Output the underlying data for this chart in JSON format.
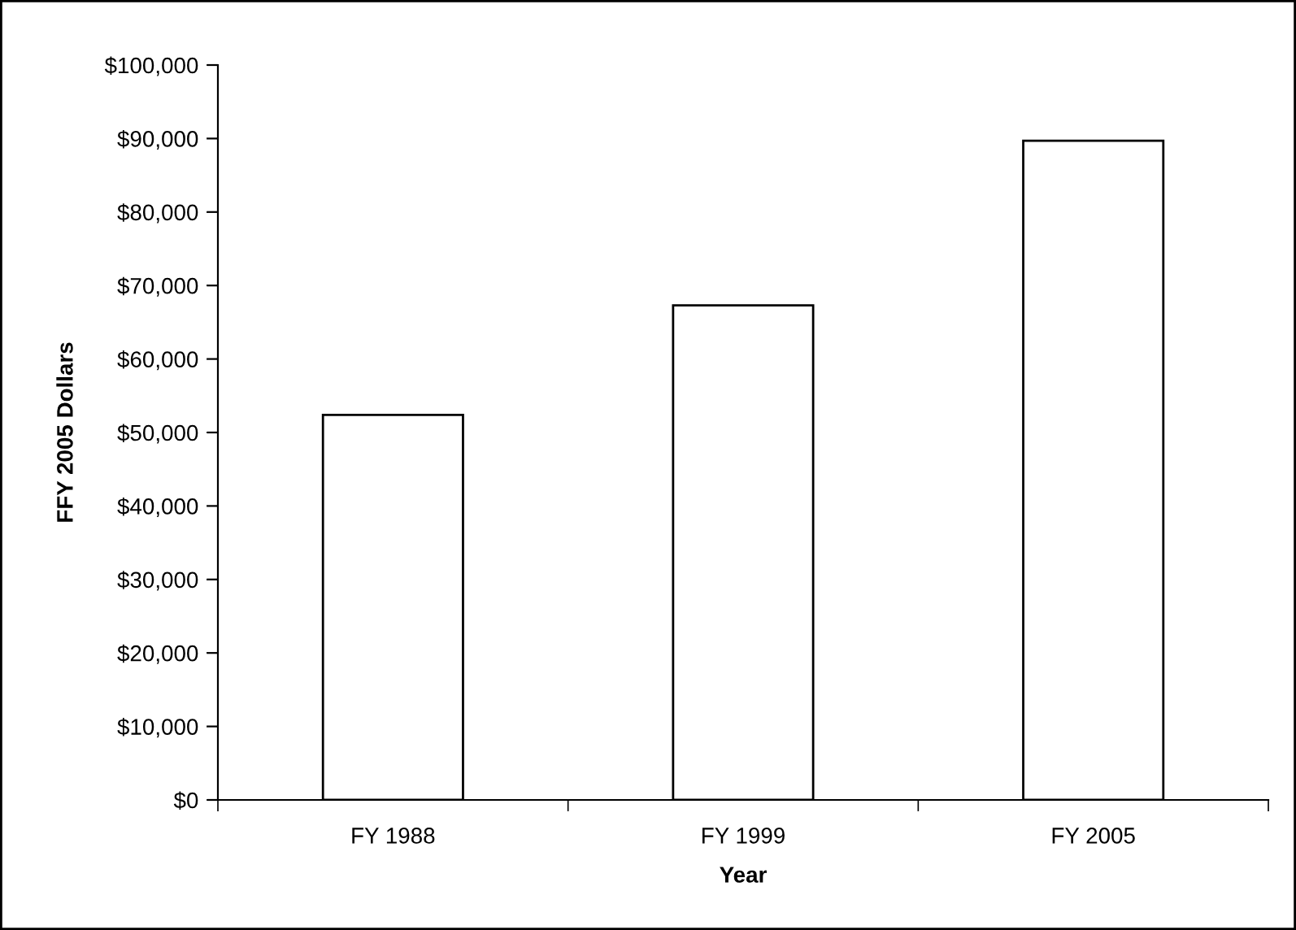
{
  "chart_data": {
    "type": "bar",
    "xlabel": "Year",
    "ylabel": "FFY 2005 Dollars",
    "categories": [
      "FY 1988",
      "FY 1999",
      "FY 2005"
    ],
    "values": [
      52400,
      67300,
      89700
    ],
    "color": "#ffffff",
    "ylim": [
      0,
      100000
    ],
    "yticks": [
      {
        "value": 0,
        "label": "$0"
      },
      {
        "value": 10000,
        "label": "$10,000"
      },
      {
        "value": 20000,
        "label": "$20,000"
      },
      {
        "value": 30000,
        "label": "$30,000"
      },
      {
        "value": 40000,
        "label": "$40,000"
      },
      {
        "value": 50000,
        "label": "$50,000"
      },
      {
        "value": 60000,
        "label": "$60,000"
      },
      {
        "value": 70000,
        "label": "$70,000"
      },
      {
        "value": 80000,
        "label": "$80,000"
      },
      {
        "value": 90000,
        "label": "$90,000"
      },
      {
        "value": 100000,
        "label": "$100,000"
      }
    ],
    "grid": false
  }
}
